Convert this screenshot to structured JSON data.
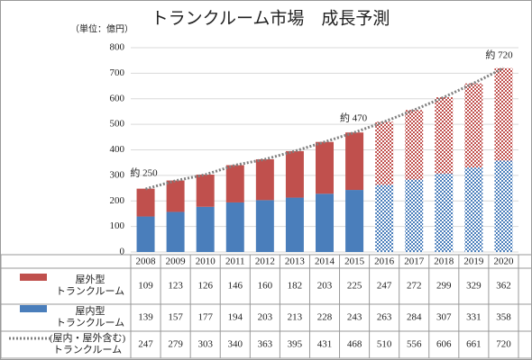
{
  "chart_data": {
    "type": "bar",
    "stacked": true,
    "title": "トランクルーム市場　成長予測",
    "unit_label": "（単位：億円）",
    "categories": [
      "2008",
      "2009",
      "2010",
      "2011",
      "2012",
      "2013",
      "2014",
      "2015",
      "2016",
      "2017",
      "2018",
      "2019",
      "2020"
    ],
    "forecast": [
      false,
      false,
      false,
      false,
      false,
      false,
      false,
      false,
      true,
      true,
      true,
      true,
      true
    ],
    "series": [
      {
        "name": "屋内型\nトランクルーム",
        "color": "#4a7ebb",
        "values": [
          139,
          157,
          177,
          194,
          203,
          213,
          228,
          243,
          263,
          284,
          307,
          331,
          358
        ]
      },
      {
        "name": "屋外型\nトランクルーム",
        "color": "#c0504d",
        "values": [
          109,
          123,
          126,
          146,
          160,
          182,
          203,
          225,
          247,
          272,
          299,
          329,
          362
        ]
      },
      {
        "name": "(屋内・屋外含む)\nトランクルーム",
        "type": "line",
        "color": "#808080",
        "dash": "dotted",
        "values": [
          247,
          279,
          303,
          340,
          363,
          395,
          431,
          468,
          510,
          556,
          606,
          661,
          720
        ]
      }
    ],
    "annotations": [
      "約 250",
      "約 470",
      "約 720"
    ],
    "ylim": [
      0,
      800
    ],
    "yticks": [
      0,
      100,
      200,
      300,
      400,
      500,
      600,
      700,
      800
    ],
    "grid": true
  }
}
